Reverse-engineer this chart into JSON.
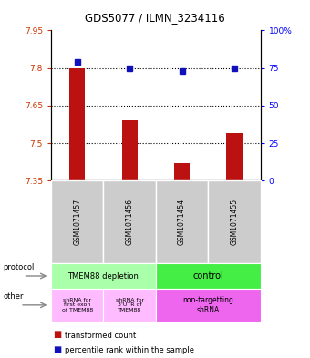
{
  "title": "GDS5077 / ILMN_3234116",
  "samples": [
    "GSM1071457",
    "GSM1071456",
    "GSM1071454",
    "GSM1071455"
  ],
  "bar_values": [
    7.8,
    7.59,
    7.42,
    7.54
  ],
  "bar_bottom": 7.35,
  "blue_dot_values": [
    79,
    75,
    73,
    75
  ],
  "ylim_left": [
    7.35,
    7.95
  ],
  "ylim_right": [
    0,
    100
  ],
  "yticks_left": [
    7.35,
    7.5,
    7.65,
    7.8,
    7.95
  ],
  "yticks_right": [
    0,
    25,
    50,
    75,
    100
  ],
  "ytick_labels_left": [
    "7.35",
    "7.5",
    "7.65",
    "7.8",
    "7.95"
  ],
  "ytick_labels_right": [
    "0",
    "25",
    "50",
    "75",
    "100%"
  ],
  "hline_values": [
    7.5,
    7.65,
    7.8
  ],
  "bar_color": "#bb1111",
  "dot_color": "#1111bb",
  "protocol_labels": [
    "TMEM88 depletion",
    "control"
  ],
  "other_label_1": "shRNA for\nfirst exon\nof TMEM88",
  "other_label_2": "shRNA for\n3'UTR of\nTMEM88",
  "other_label_3": "non-targetting\nshRNA",
  "protocol_color_1": "#aaffaa",
  "protocol_color_2": "#44ee44",
  "other_color_12": "#ffbbff",
  "other_color_3": "#ee66ee",
  "sample_bg_color": "#cccccc",
  "legend_red_label": "transformed count",
  "legend_blue_label": "percentile rank within the sample",
  "arrow_label_protocol": "protocol",
  "arrow_label_other": "other"
}
